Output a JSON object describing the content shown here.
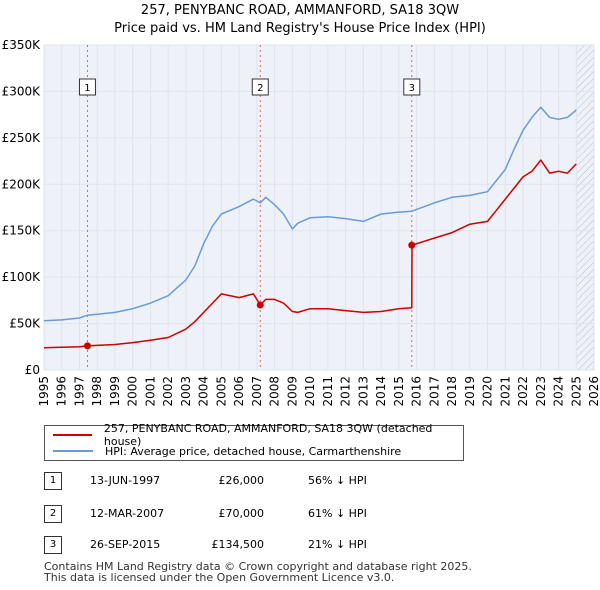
{
  "title_line1": "257, PENYBANC ROAD, AMMANFORD, SA18 3QW",
  "title_line2": "Price paid vs. HM Land Registry's House Price Index (HPI)",
  "chart_data": {
    "type": "line",
    "xlim": [
      1995,
      2026
    ],
    "ylim": [
      0,
      350000
    ],
    "x_ticks": [
      "1995",
      "1996",
      "1997",
      "1998",
      "1999",
      "2000",
      "2001",
      "2002",
      "2003",
      "2004",
      "2005",
      "2006",
      "2007",
      "2008",
      "2009",
      "2010",
      "2011",
      "2012",
      "2013",
      "2014",
      "2015",
      "2016",
      "2017",
      "2018",
      "2019",
      "2020",
      "2021",
      "2022",
      "2023",
      "2024",
      "2025",
      "2026"
    ],
    "y_ticks": [
      {
        "value": 0,
        "label": "£0"
      },
      {
        "value": 50000,
        "label": "£50K"
      },
      {
        "value": 100000,
        "label": "£100K"
      },
      {
        "value": 150000,
        "label": "£150K"
      },
      {
        "value": 200000,
        "label": "£200K"
      },
      {
        "value": 250000,
        "label": "£250K"
      },
      {
        "value": 300000,
        "label": "£300K"
      },
      {
        "value": 350000,
        "label": "£350K"
      }
    ],
    "grid": true,
    "hatched_future_from": 2025.0,
    "series": [
      {
        "name": "257, PENYBANC ROAD, AMMANFORD, SA18 3QW (detached house)",
        "color": "#cc0000",
        "x": [
          1995.0,
          1996.0,
          1997.0,
          1997.45,
          1998.0,
          1999.0,
          2000.0,
          2001.0,
          2002.0,
          2003.0,
          2003.5,
          2004.0,
          2005.0,
          2006.0,
          2006.8,
          2007.19,
          2007.5,
          2008.0,
          2008.5,
          2009.0,
          2009.3,
          2010.0,
          2011.0,
          2012.0,
          2013.0,
          2014.0,
          2015.0,
          2015.73,
          2015.74,
          2016.0,
          2017.0,
          2018.0,
          2019.0,
          2020.0,
          2020.5,
          2021.0,
          2021.5,
          2022.0,
          2022.5,
          2023.0,
          2023.5,
          2024.0,
          2024.5,
          2025.0
        ],
        "y": [
          24000,
          24500,
          25000,
          26000,
          26500,
          27500,
          29500,
          32000,
          35000,
          44000,
          52000,
          62000,
          82000,
          78000,
          82000,
          70000,
          76000,
          76000,
          72000,
          63000,
          62000,
          66000,
          66000,
          64000,
          62000,
          63000,
          66000,
          67000,
          134500,
          136000,
          142000,
          148000,
          157000,
          160000,
          172000,
          184000,
          196000,
          208000,
          214000,
          226000,
          212000,
          214000,
          212000,
          222000
        ]
      },
      {
        "name": "HPI: Average price, detached house, Carmarthenshire",
        "color": "#6a9bd8",
        "x": [
          1995.0,
          1996.0,
          1997.0,
          1997.45,
          1998.0,
          1999.0,
          2000.0,
          2001.0,
          2002.0,
          2003.0,
          2003.5,
          2004.0,
          2004.5,
          2005.0,
          2006.0,
          2006.8,
          2007.19,
          2007.5,
          2008.0,
          2008.5,
          2009.0,
          2009.3,
          2010.0,
          2011.0,
          2012.0,
          2013.0,
          2014.0,
          2015.0,
          2015.73,
          2016.0,
          2017.0,
          2018.0,
          2019.0,
          2020.0,
          2020.5,
          2021.0,
          2021.5,
          2022.0,
          2022.5,
          2023.0,
          2023.5,
          2024.0,
          2024.5,
          2025.0
        ],
        "y": [
          53000,
          54000,
          56000,
          59000,
          60000,
          62000,
          66000,
          72000,
          80000,
          97000,
          112000,
          136000,
          155000,
          168000,
          176000,
          184000,
          180000,
          186000,
          178000,
          168000,
          152000,
          158000,
          164000,
          165000,
          163000,
          160000,
          168000,
          170000,
          171000,
          173000,
          180000,
          186000,
          188000,
          192000,
          204000,
          216000,
          238000,
          258000,
          272000,
          283000,
          272000,
          270000,
          272000,
          280000
        ]
      }
    ],
    "sales": [
      {
        "label": "1",
        "x": 1997.45,
        "y": 26000
      },
      {
        "label": "2",
        "x": 2007.19,
        "y": 70000
      },
      {
        "label": "3",
        "x": 2015.73,
        "y": 134500
      }
    ]
  },
  "legend": {
    "property_label": "257, PENYBANC ROAD, AMMANFORD, SA18 3QW (detached house)",
    "hpi_label": "HPI: Average price, detached house, Carmarthenshire"
  },
  "sales_table": [
    {
      "num": "1",
      "date": "13-JUN-1997",
      "price": "£26,000",
      "hpi": "56% ↓ HPI"
    },
    {
      "num": "2",
      "date": "12-MAR-2007",
      "price": "£70,000",
      "hpi": "61% ↓ HPI"
    },
    {
      "num": "3",
      "date": "26-SEP-2015",
      "price": "£134,500",
      "hpi": "21% ↓ HPI"
    }
  ],
  "footer": {
    "line1": "Contains HM Land Registry data © Crown copyright and database right 2025.",
    "line2": "This data is licensed under the Open Government Licence v3.0."
  },
  "colors": {
    "property": "#cc0000",
    "hpi": "#6a9bd8",
    "grid": "#dde3ee",
    "plot_bg": "#eef2f8"
  }
}
